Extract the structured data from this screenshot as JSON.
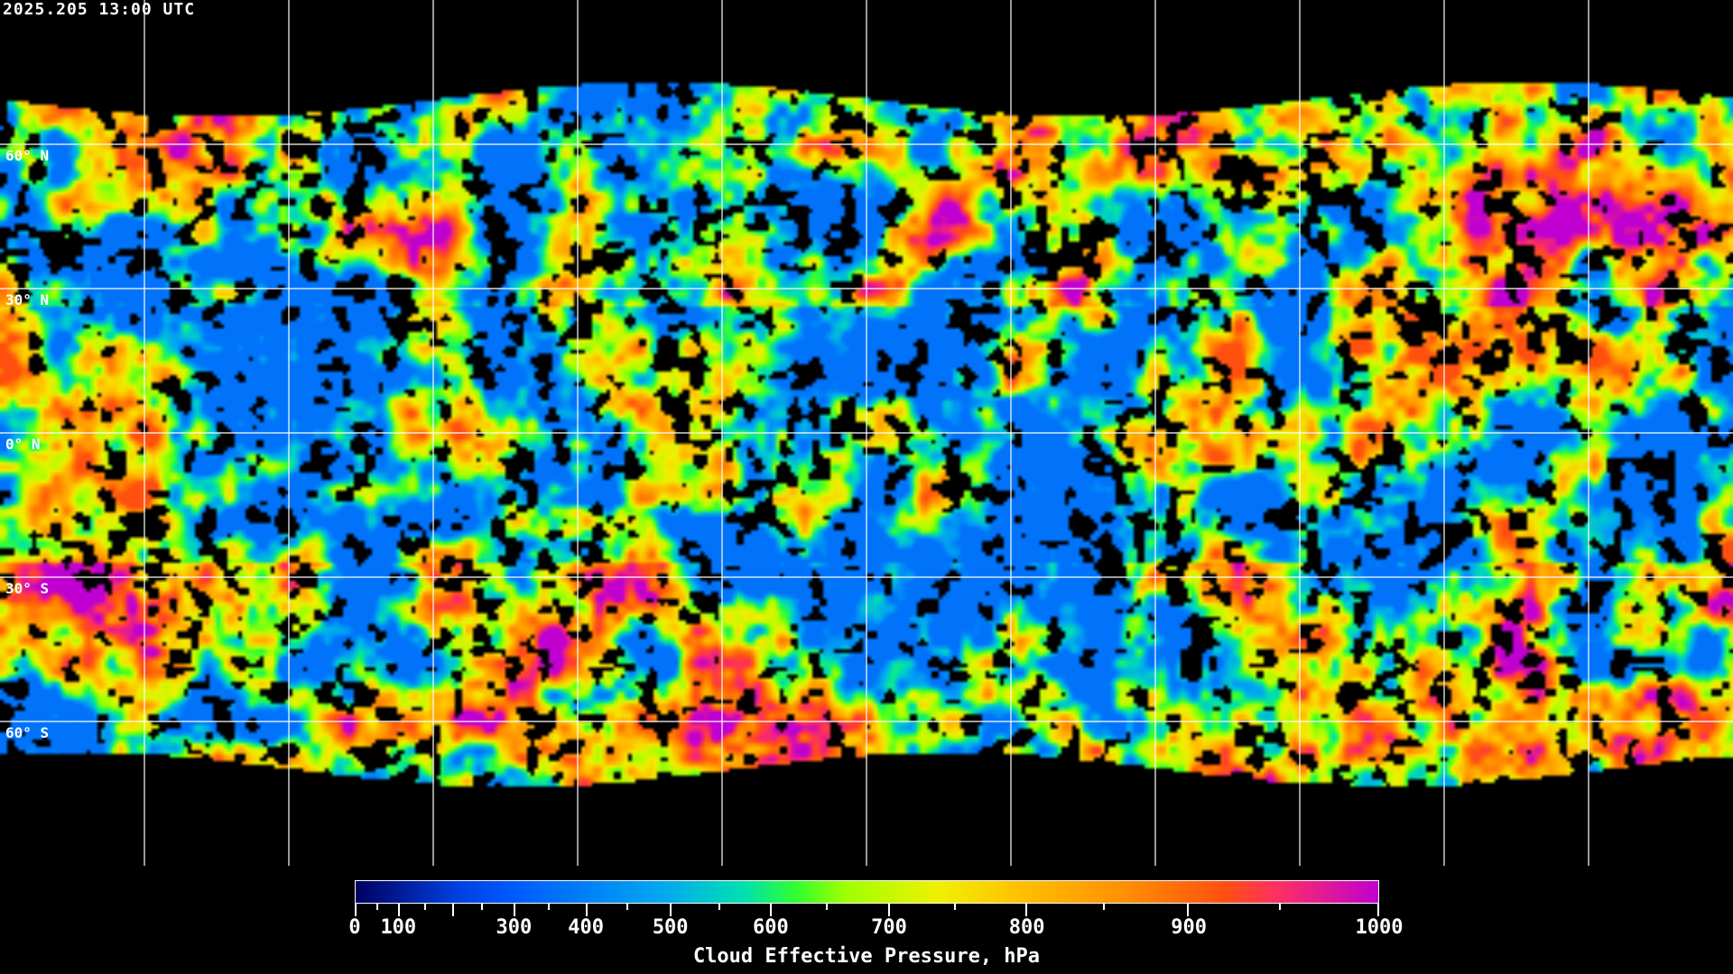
{
  "timestamp": "2025.205 13:00 UTC",
  "map": {
    "projection": "equirectangular",
    "gridlines": "every 30 degrees",
    "lat_labels": [
      "60° N",
      "30° N",
      "0° N",
      "30° S",
      "60° S"
    ],
    "background_color": "#000000",
    "coastline_color": "#ffffff"
  },
  "colorbar": {
    "title": "Cloud Effective Pressure, hPa",
    "range": [
      0,
      1000
    ],
    "tick_labels": [
      "0",
      "100",
      "300",
      "400",
      "500",
      "600",
      "700",
      "800",
      "900",
      "1000"
    ],
    "colors": [
      "#000060",
      "#0040e0",
      "#0058ff",
      "#00a8f0",
      "#00e0b0",
      "#30ff30",
      "#a0ff00",
      "#f0f000",
      "#ffc000",
      "#ff9000",
      "#ff5010",
      "#ff3060",
      "#c000d0"
    ]
  }
}
